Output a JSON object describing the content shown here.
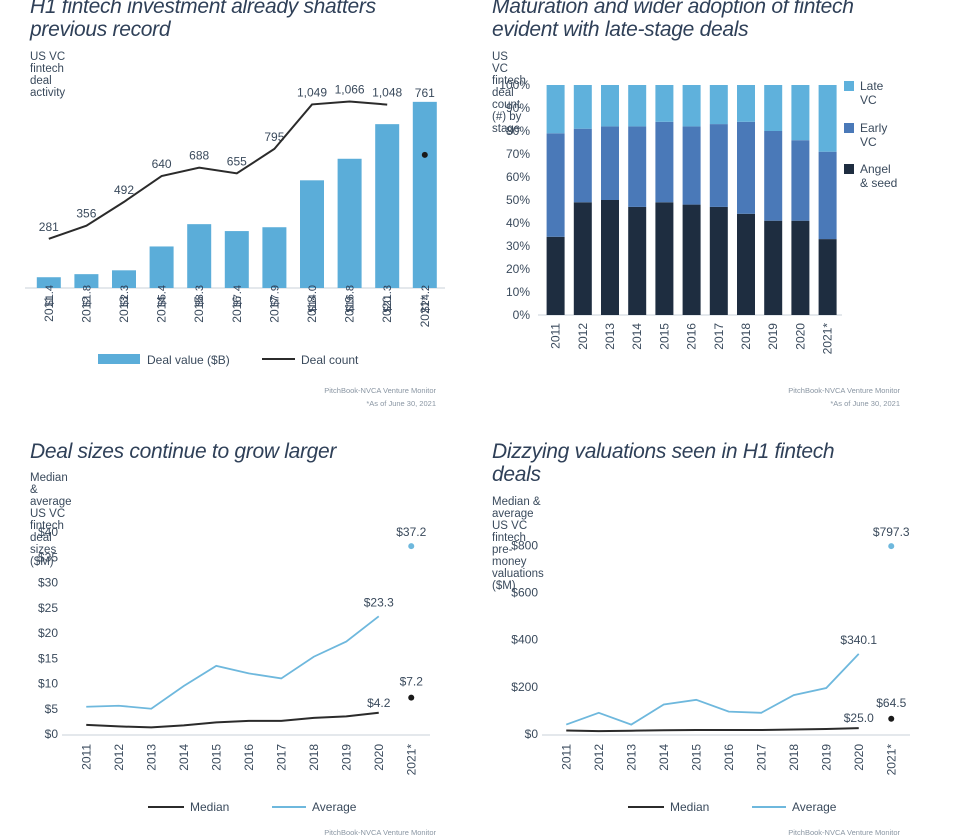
{
  "panels": {
    "p1": {
      "title": "H1 fintech investment already shatters previous record",
      "subtitle": "US VC fintech deal activity",
      "source": "PitchBook-NVCA Venture Monitor",
      "note": "*As of June 30, 2021"
    },
    "p2": {
      "title": "Maturation and wider adoption of fintech evident with late-stage deals",
      "subtitle": "US VC fintech deal count (#) by stage",
      "source": "PitchBook-NVCA Venture Monitor",
      "note": "*As of June 30, 2021"
    },
    "p3": {
      "title": "Deal sizes continue to grow larger",
      "subtitle": "Median & average US VC fintech deal sizes ($M)",
      "source": "PitchBook-NVCA Venture Monitor"
    },
    "p4": {
      "title": "Dizzying valuations seen in H1 fintech deals",
      "subtitle": "Median & average US VC fintech pre-money valuations ($M)",
      "source": "PitchBook-NVCA Venture Monitor"
    }
  },
  "chart_data": [
    {
      "id": "deal_activity",
      "type": "bar",
      "categories": [
        "2011",
        "2012",
        "2013",
        "2014",
        "2015",
        "2016",
        "2017",
        "2018",
        "2019",
        "2020",
        "2021*"
      ],
      "bar_values": [
        1.4,
        1.8,
        2.3,
        5.4,
        8.3,
        7.4,
        7.9,
        14.0,
        16.8,
        21.3,
        24.2
      ],
      "bar_labels": [
        "$1.4",
        "$1.8",
        "$2.3",
        "$5.4",
        "$8.3",
        "$7.4",
        "$7.9",
        "$14.0",
        "$16.8",
        "$21.3",
        "$24.2"
      ],
      "line_values": [
        281,
        356,
        492,
        640,
        688,
        655,
        795,
        1049,
        1066,
        1048
      ],
      "line_labels": [
        "281",
        "356",
        "492",
        "640",
        "688",
        "655",
        "795",
        "1,049",
        "1,066",
        "1,048"
      ],
      "marker_label": "761",
      "bar_max": 26,
      "line_max": 1200,
      "legend": [
        "Deal value ($B)",
        "Deal count"
      ],
      "colors": {
        "bar": "#5badd9",
        "line": "#2b2b2b"
      }
    },
    {
      "id": "deal_stage",
      "type": "bar",
      "stacked": true,
      "categories": [
        "2011",
        "2012",
        "2013",
        "2014",
        "2015",
        "2016",
        "2017",
        "2018",
        "2019",
        "2020",
        "2021*"
      ],
      "series": [
        {
          "name": "Angel & seed",
          "values": [
            34,
            49,
            50,
            47,
            49,
            48,
            47,
            44,
            41,
            41,
            33
          ],
          "color": "#1e2d40"
        },
        {
          "name": "Early VC",
          "values": [
            45,
            32,
            32,
            35,
            35,
            34,
            36,
            40,
            39,
            35,
            38
          ],
          "color": "#4a79b8"
        },
        {
          "name": "Late VC",
          "values": [
            21,
            19,
            18,
            18,
            16,
            18,
            17,
            16,
            20,
            24,
            29
          ],
          "color": "#5fb1dc"
        }
      ],
      "ylim": [
        0,
        100
      ],
      "yticks": [
        "0%",
        "10%",
        "20%",
        "30%",
        "40%",
        "50%",
        "60%",
        "70%",
        "80%",
        "90%",
        "100%"
      ]
    },
    {
      "id": "deal_sizes",
      "type": "line",
      "categories": [
        "2011",
        "2012",
        "2013",
        "2014",
        "2015",
        "2016",
        "2017",
        "2018",
        "2019",
        "2020",
        "2021*"
      ],
      "series": [
        {
          "name": "Median",
          "values": [
            1.8,
            1.5,
            1.3,
            1.7,
            2.3,
            2.6,
            2.6,
            3.2,
            3.5,
            4.2,
            7.2
          ],
          "color": "#2b2b2b"
        },
        {
          "name": "Average",
          "values": [
            5.4,
            5.6,
            5.0,
            9.5,
            13.5,
            12.0,
            11.0,
            15.3,
            18.3,
            23.3,
            37.2
          ],
          "color": "#6eb8dd"
        }
      ],
      "labels": {
        "median_2020": "$4.2",
        "average_2020": "$23.3",
        "median_2021": "$7.2",
        "average_2021": "$37.2"
      },
      "ylim": [
        0,
        40
      ],
      "yticks": [
        "$0",
        "$5",
        "$10",
        "$15",
        "$20",
        "$25",
        "$30",
        "$35",
        "$40"
      ]
    },
    {
      "id": "valuations",
      "type": "line",
      "categories": [
        "2011",
        "2012",
        "2013",
        "2014",
        "2015",
        "2016",
        "2017",
        "2018",
        "2019",
        "2020",
        "2021*"
      ],
      "series": [
        {
          "name": "Median",
          "values": [
            15,
            12,
            14,
            16,
            17,
            17,
            17,
            19,
            21,
            25.0,
            64.5
          ],
          "color": "#2b2b2b"
        },
        {
          "name": "Average",
          "values": [
            40,
            90,
            40,
            125,
            145,
            95,
            90,
            165,
            195,
            340.1,
            797.3
          ],
          "color": "#6eb8dd"
        }
      ],
      "labels": {
        "median_2020": "$25.0",
        "average_2020": "$340.1",
        "median_2021": "$64.5",
        "average_2021": "$797.3"
      },
      "ylim": [
        0,
        870
      ],
      "yticks": [
        "$0",
        "$200",
        "$400",
        "$600",
        "$800"
      ]
    }
  ]
}
